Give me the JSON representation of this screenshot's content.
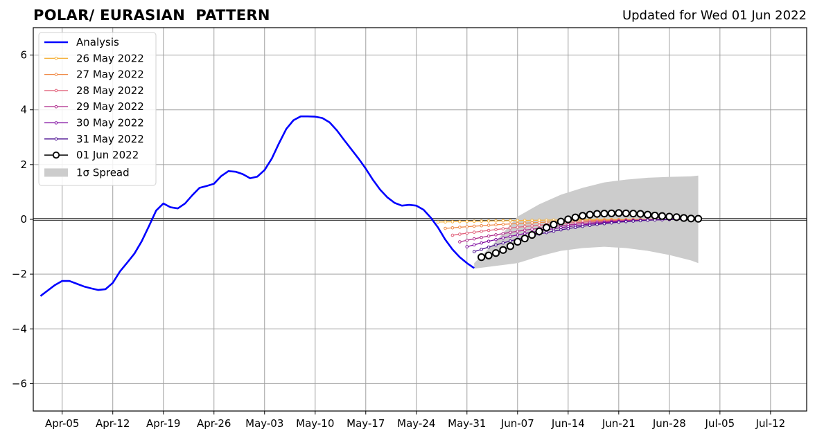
{
  "chart_data": {
    "type": "line",
    "title": "POLAR/ EURASIAN  PATTERN",
    "subtitle": "Updated for Wed 01 Jun 2022",
    "xlabel": "",
    "ylabel": "",
    "ylim": [
      -7,
      7
    ],
    "xlim": [
      "2022-04-01",
      "2022-07-17"
    ],
    "yticks": [
      -6,
      -4,
      -2,
      0,
      2,
      4,
      6
    ],
    "xticks": [
      "2022-04-05",
      "2022-04-12",
      "2022-04-19",
      "2022-04-26",
      "2022-05-03",
      "2022-05-10",
      "2022-05-17",
      "2022-05-24",
      "2022-05-31",
      "2022-06-07",
      "2022-06-14",
      "2022-06-21",
      "2022-06-28",
      "2022-07-05",
      "2022-07-12"
    ],
    "xtick_labels": [
      "Apr-05",
      "Apr-12",
      "Apr-19",
      "Apr-26",
      "May-03",
      "May-10",
      "May-17",
      "May-24",
      "May-31",
      "Jun-07",
      "Jun-14",
      "Jun-21",
      "Jun-28",
      "Jul-05",
      "Jul-12"
    ],
    "grid": true,
    "legend_position": "upper-left",
    "analysis": {
      "name": "Analysis",
      "color": "#0000ff",
      "x": [
        "2022-04-02",
        "2022-04-03",
        "2022-04-04",
        "2022-04-05",
        "2022-04-06",
        "2022-04-07",
        "2022-04-08",
        "2022-04-09",
        "2022-04-10",
        "2022-04-11",
        "2022-04-12",
        "2022-04-13",
        "2022-04-14",
        "2022-04-15",
        "2022-04-16",
        "2022-04-17",
        "2022-04-18",
        "2022-04-19",
        "2022-04-20",
        "2022-04-21",
        "2022-04-22",
        "2022-04-23",
        "2022-04-24",
        "2022-04-25",
        "2022-04-26",
        "2022-04-27",
        "2022-04-28",
        "2022-04-29",
        "2022-04-30",
        "2022-05-01",
        "2022-05-02",
        "2022-05-03",
        "2022-05-04",
        "2022-05-05",
        "2022-05-06",
        "2022-05-07",
        "2022-05-08",
        "2022-05-09",
        "2022-05-10",
        "2022-05-11",
        "2022-05-12",
        "2022-05-13",
        "2022-05-14",
        "2022-05-15",
        "2022-05-16",
        "2022-05-17",
        "2022-05-18",
        "2022-05-19",
        "2022-05-20",
        "2022-05-21",
        "2022-05-22",
        "2022-05-23",
        "2022-05-24",
        "2022-05-25",
        "2022-05-26",
        "2022-05-27",
        "2022-05-28",
        "2022-05-29",
        "2022-05-30",
        "2022-05-31",
        "2022-06-01"
      ],
      "y": [
        -2.8,
        -2.6,
        -2.4,
        -2.25,
        -2.25,
        -2.35,
        -2.45,
        -2.52,
        -2.58,
        -2.55,
        -2.32,
        -1.9,
        -1.58,
        -1.25,
        -0.8,
        -0.25,
        0.32,
        0.58,
        0.44,
        0.4,
        0.58,
        0.88,
        1.15,
        1.22,
        1.3,
        1.58,
        1.76,
        1.74,
        1.65,
        1.5,
        1.56,
        1.8,
        2.22,
        2.78,
        3.3,
        3.62,
        3.76,
        3.76,
        3.75,
        3.7,
        3.54,
        3.25,
        2.9,
        2.56,
        2.22,
        1.85,
        1.44,
        1.08,
        0.8,
        0.6,
        0.5,
        0.53,
        0.5,
        0.35,
        0.06,
        -0.3,
        -0.74,
        -1.1,
        -1.38,
        -1.6,
        -1.78
      ]
    },
    "forecasts": [
      {
        "name": "26 May 2022",
        "color": "#f5b33f",
        "start": "2022-05-27",
        "y0": -0.1,
        "y1": 0.0,
        "days": 36
      },
      {
        "name": "27 May 2022",
        "color": "#f08a48",
        "start": "2022-05-28",
        "y0": -0.33,
        "y1": 0.0,
        "days": 35
      },
      {
        "name": "28 May 2022",
        "color": "#e0607a",
        "start": "2022-05-29",
        "y0": -0.58,
        "y1": 0.0,
        "days": 34
      },
      {
        "name": "29 May 2022",
        "color": "#b02e8e",
        "start": "2022-05-30",
        "y0": -0.82,
        "y1": 0.0,
        "days": 33
      },
      {
        "name": "30 May 2022",
        "color": "#7f0aa0",
        "start": "2022-05-31",
        "y0": -1.0,
        "y1": 0.0,
        "days": 32
      },
      {
        "name": "31 May 2022",
        "color": "#4a0d8f",
        "start": "2022-06-01",
        "y0": -1.18,
        "y1": 0.0,
        "days": 31
      }
    ],
    "current_forecast": {
      "name": "01 Jun 2022",
      "color": "#000000",
      "x": [
        "2022-06-02",
        "2022-06-03",
        "2022-06-04",
        "2022-06-05",
        "2022-06-06",
        "2022-06-07",
        "2022-06-08",
        "2022-06-09",
        "2022-06-10",
        "2022-06-11",
        "2022-06-12",
        "2022-06-13",
        "2022-06-14",
        "2022-06-15",
        "2022-06-16",
        "2022-06-17",
        "2022-06-18",
        "2022-06-19",
        "2022-06-20",
        "2022-06-21",
        "2022-06-22",
        "2022-06-23",
        "2022-06-24",
        "2022-06-25",
        "2022-06-26",
        "2022-06-27",
        "2022-06-28",
        "2022-06-29",
        "2022-06-30",
        "2022-07-01",
        "2022-07-02"
      ],
      "y": [
        -1.38,
        -1.32,
        -1.23,
        -1.12,
        -0.98,
        -0.82,
        -0.7,
        -0.57,
        -0.44,
        -0.3,
        -0.19,
        -0.08,
        0.0,
        0.07,
        0.13,
        0.17,
        0.2,
        0.21,
        0.22,
        0.23,
        0.22,
        0.21,
        0.2,
        0.17,
        0.14,
        0.12,
        0.1,
        0.08,
        0.05,
        0.03,
        0.02
      ]
    },
    "spread": {
      "name": "1σ Spread",
      "color": "#cccccc",
      "x": [
        "2022-06-01",
        "2022-06-04",
        "2022-06-07",
        "2022-06-10",
        "2022-06-13",
        "2022-06-16",
        "2022-06-19",
        "2022-06-22",
        "2022-06-25",
        "2022-06-28",
        "2022-07-01",
        "2022-07-02"
      ],
      "upper": [
        -1.6,
        -0.8,
        0.1,
        0.55,
        0.9,
        1.15,
        1.35,
        1.45,
        1.52,
        1.55,
        1.57,
        1.6
      ],
      "lower": [
        -1.8,
        -1.7,
        -1.6,
        -1.35,
        -1.15,
        -1.05,
        -1.0,
        -1.05,
        -1.15,
        -1.3,
        -1.5,
        -1.6
      ]
    }
  }
}
